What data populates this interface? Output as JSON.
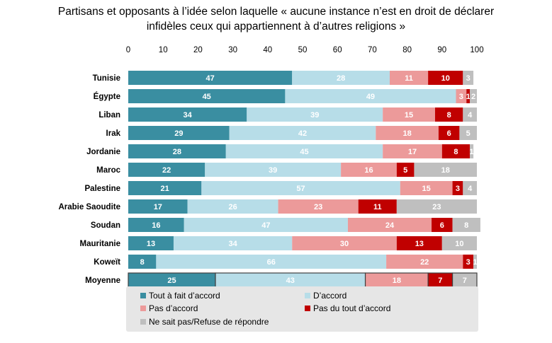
{
  "chart_data": {
    "type": "bar",
    "orientation": "horizontal",
    "stacked": true,
    "title": "Partisans et opposants à l’idée selon laquelle « aucune instance n’est en droit de déclarer infidèles ceux qui appartiennent à d’autres religions »",
    "title_lines": [
      "Partisans et opposants à l’idée selon laquelle « aucune instance n’est en droit de déclarer",
      "infidèles ceux qui appartiennent à d’autres religions »"
    ],
    "xlim": [
      0,
      100
    ],
    "xticks": [
      0,
      10,
      20,
      30,
      40,
      50,
      60,
      70,
      80,
      90,
      100
    ],
    "axis_position": "top",
    "grid": false,
    "legend_position": "bottom",
    "categories": [
      "Tunisie",
      "Égypte",
      "Liban",
      "Irak",
      "Jordanie",
      "Maroc",
      "Palestine",
      "Arabie Saoudite",
      "Soudan",
      "Mauritanie",
      "Koweït",
      "Moyenne"
    ],
    "series": [
      {
        "name": "Tout à fait d’accord",
        "color": "#3a8ea1",
        "label_color": "#ffffff",
        "values": [
          47,
          45,
          34,
          29,
          28,
          22,
          21,
          17,
          16,
          13,
          8,
          25
        ]
      },
      {
        "name": "D’accord",
        "color": "#b7dde8",
        "label_color": "#ffffff",
        "values": [
          28,
          49,
          39,
          42,
          45,
          39,
          57,
          26,
          47,
          34,
          66,
          43
        ]
      },
      {
        "name": "Pas d’accord",
        "color": "#ec9a9a",
        "label_color": "#ffffff",
        "values": [
          11,
          3,
          15,
          18,
          17,
          16,
          15,
          23,
          24,
          30,
          22,
          18
        ]
      },
      {
        "name": "Pas du tout d’accord",
        "color": "#c00000",
        "label_color": "#ffffff",
        "values": [
          10,
          1,
          8,
          6,
          8,
          5,
          3,
          11,
          6,
          13,
          3,
          7
        ]
      },
      {
        "name": "Ne sait pas/Refuse de répondre",
        "color": "#bfbfbf",
        "label_color": "#ffffff",
        "values": [
          3,
          2,
          4,
          5,
          1,
          18,
          4,
          23,
          8,
          10,
          1,
          7
        ]
      }
    ],
    "value_labels": [
      [
        "47",
        "28",
        "11",
        "10",
        "3"
      ],
      [
        "45",
        "49",
        "3",
        "1",
        "2"
      ],
      [
        "34",
        "39",
        "15",
        "8",
        "4"
      ],
      [
        "29",
        "42",
        "18",
        "6",
        "5"
      ],
      [
        "28",
        "45",
        "17",
        "8",
        "1"
      ],
      [
        "22",
        "39",
        "16",
        "5",
        "18"
      ],
      [
        "21",
        "57",
        "15",
        "3",
        "4"
      ],
      [
        "17",
        "26",
        "23",
        "11",
        "23"
      ],
      [
        "16",
        "47",
        "24",
        "6",
        "8"
      ],
      [
        "13",
        "34",
        "30",
        "13",
        "10"
      ],
      [
        "8",
        "66",
        "22",
        "3",
        "1"
      ],
      [
        "25",
        "43",
        "18",
        "7",
        "7"
      ]
    ],
    "highlight_category": "Moyenne",
    "legend_background": "#e6e6e6"
  }
}
